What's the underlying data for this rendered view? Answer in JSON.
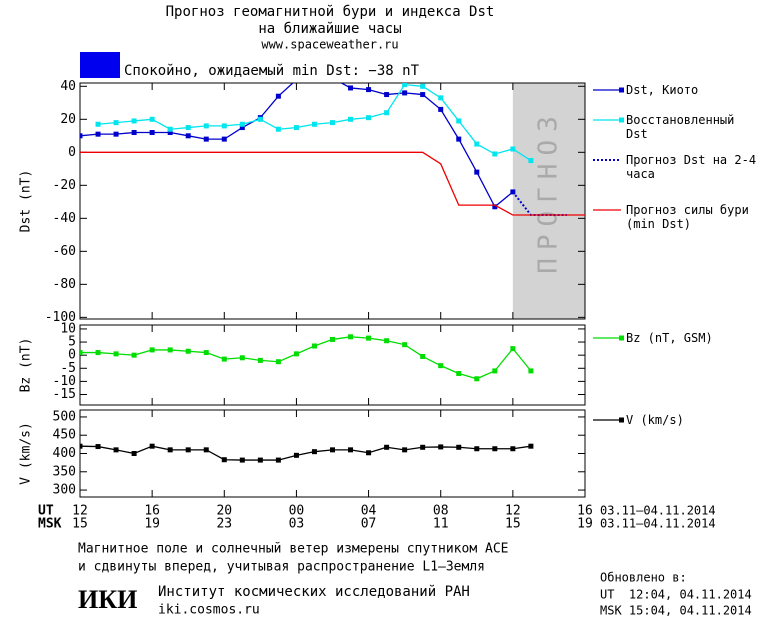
{
  "header": {
    "title": "Прогноз геомагнитной бури и индекса Dst",
    "subtitle": "на ближайшие часы",
    "site": "www.spaceweather.ru",
    "status": "Спокойно, ожидаемый min Dst: −38 nT",
    "status_color": "#0000ee"
  },
  "chart_data": [
    {
      "type": "line",
      "ylabel": "Dst (nT)",
      "xlim": [
        0,
        28
      ],
      "xticks": [
        0,
        4,
        8,
        12,
        16,
        20,
        24,
        28
      ],
      "ylim": [
        -101,
        42
      ],
      "yticks": [
        40,
        20,
        0,
        -20,
        -40,
        -60,
        -80,
        -100
      ],
      "forecast_band": [
        24,
        28
      ],
      "band_label": "ПРОГНОЗ",
      "series": [
        {
          "name": "Dst, Киото",
          "color": "#0000cc",
          "marker": true,
          "style": "solid",
          "x": [
            0,
            1,
            2,
            3,
            4,
            5,
            6,
            7,
            8,
            9,
            10,
            11,
            12,
            13,
            14,
            15,
            16,
            17,
            18,
            19,
            20,
            21,
            22,
            23,
            24
          ],
          "values": [
            10,
            11,
            11,
            12,
            12,
            12,
            10,
            8,
            8,
            15,
            21,
            34,
            44,
            48,
            45,
            39,
            38,
            35,
            36,
            35,
            26,
            8,
            -12,
            -33,
            -24
          ]
        },
        {
          "name": "Восстановленный Dst",
          "color": "#00e5ee",
          "marker": true,
          "style": "solid",
          "x": [
            0,
            1,
            2,
            3,
            4,
            5,
            6,
            7,
            8,
            9,
            10,
            11,
            12,
            13,
            14,
            15,
            16,
            17,
            18,
            19,
            20,
            21,
            22,
            23,
            24,
            25
          ],
          "values": [
            null,
            17,
            18,
            19,
            20,
            14,
            15,
            16,
            16,
            17,
            20,
            14,
            15,
            17,
            18,
            20,
            21,
            24,
            41,
            40,
            33,
            19,
            5,
            -1,
            2,
            -5
          ]
        },
        {
          "name": "Прогноз Dst на 2-4 часа",
          "color": "#0000cc",
          "marker": false,
          "style": "dotted",
          "x": [
            24,
            25,
            27
          ],
          "values": [
            -24,
            -38,
            -38
          ]
        },
        {
          "name": "Прогноз силы бури (min Dst)",
          "color": "#ee0000",
          "marker": false,
          "style": "solid",
          "x": [
            0,
            19,
            20,
            21,
            23,
            24,
            28
          ],
          "values": [
            0,
            0,
            -7,
            -32,
            -32,
            -38,
            -38
          ]
        }
      ]
    },
    {
      "type": "line",
      "ylabel": "Bz (nT)",
      "xlim": [
        0,
        28
      ],
      "xticks": [
        0,
        4,
        8,
        12,
        16,
        20,
        24,
        28
      ],
      "ylim": [
        -19,
        11.5
      ],
      "yticks": [
        10,
        5,
        0,
        -5,
        -10,
        -15
      ],
      "series": [
        {
          "name": "Bz (nT, GSM)",
          "color": "#00dd00",
          "marker": true,
          "style": "solid",
          "x": [
            0,
            1,
            2,
            3,
            4,
            5,
            6,
            7,
            8,
            9,
            10,
            11,
            12,
            13,
            14,
            15,
            16,
            17,
            18,
            19,
            20,
            21,
            22,
            23,
            24,
            25
          ],
          "values": [
            1,
            1,
            0.5,
            0,
            2,
            2,
            1.5,
            1,
            -1.5,
            -1,
            -2,
            -2.5,
            0.5,
            3.5,
            6,
            7,
            6.5,
            5.5,
            4,
            -0.5,
            -4,
            -7,
            -9,
            -6,
            2.5,
            -6
          ]
        }
      ]
    },
    {
      "type": "line",
      "ylabel": "V (km/s)",
      "xlim": [
        0,
        28
      ],
      "xticks": [
        {
          "value": 0,
          "label": "12"
        },
        {
          "value": 4,
          "label": "16"
        },
        {
          "value": 8,
          "label": "20"
        },
        {
          "value": 12,
          "label": "00"
        },
        {
          "value": 16,
          "label": "04"
        },
        {
          "value": 20,
          "label": "08"
        },
        {
          "value": 24,
          "label": "12"
        },
        {
          "value": 28,
          "label": "16"
        }
      ],
      "msk_labels": [
        "15",
        "19",
        "23",
        "03",
        "07",
        "11",
        "15",
        "19"
      ],
      "ut_name": "UT",
      "msk_name": "MSK",
      "date_range": "03.11–04.11.2014",
      "ylim": [
        281,
        519
      ],
      "yticks": [
        500,
        450,
        400,
        350,
        300
      ],
      "series": [
        {
          "name": "V (km/s)",
          "color": "#000000",
          "marker": true,
          "style": "solid",
          "x": [
            0,
            1,
            2,
            3,
            4,
            5,
            6,
            7,
            8,
            9,
            10,
            11,
            12,
            13,
            14,
            15,
            16,
            17,
            18,
            19,
            20,
            21,
            22,
            23,
            24,
            25
          ],
          "values": [
            420,
            419,
            410,
            400,
            420,
            410,
            410,
            410,
            383,
            382,
            382,
            382,
            395,
            405,
            410,
            410,
            402,
            417,
            410,
            417,
            418,
            417,
            413,
            413,
            413,
            420
          ]
        }
      ]
    }
  ],
  "footer": {
    "note1": "Магнитное поле и солнечный ветер измерены спутником ACE",
    "note2": "и сдвинуты вперед, учитывая распространение L1–Земля",
    "logo": "ИКИ",
    "institute": "Институт космических исследований РАН",
    "institute_site": "iki.cosmos.ru",
    "updated": "Обновлено в:",
    "updated_ut": "UT  12:04, 04.11.2014",
    "updated_msk": "MSK 15:04, 04.11.2014"
  }
}
